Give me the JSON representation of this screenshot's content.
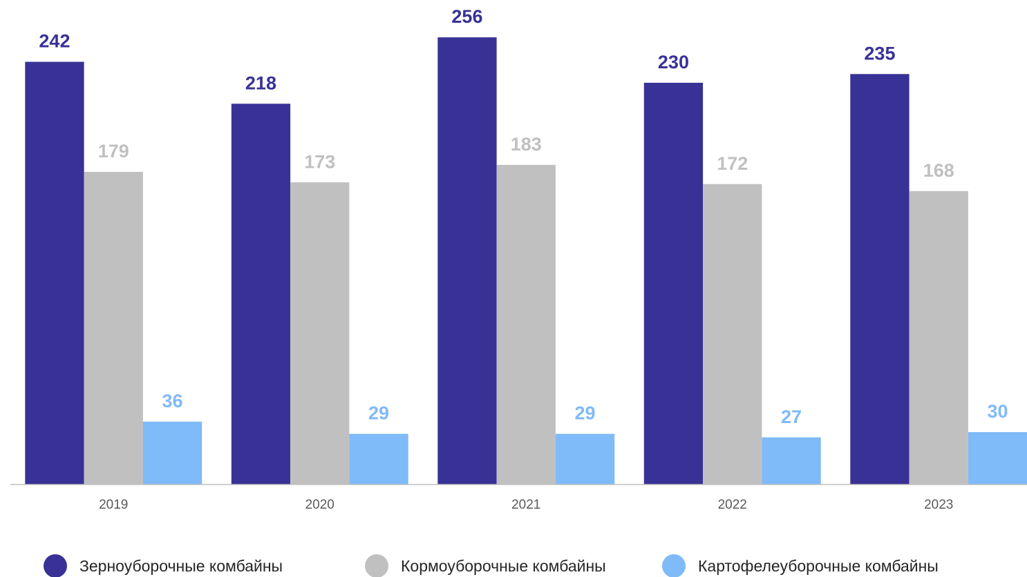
{
  "chart_data": {
    "type": "bar",
    "categories": [
      "2019",
      "2020",
      "2021",
      "2022",
      "2023"
    ],
    "series": [
      {
        "name": "Зерноуборочные комбайны",
        "color": "#383296",
        "values": [
          242,
          218,
          256,
          230,
          235
        ]
      },
      {
        "name": "Кормоуборочные комбайны",
        "color": "#c0c0c0",
        "values": [
          179,
          173,
          183,
          172,
          168
        ]
      },
      {
        "name": "Картофелеуборочные комбайны",
        "color": "#7fbaf9",
        "values": [
          36,
          29,
          29,
          27,
          30
        ]
      }
    ],
    "ylim": [
      0,
      260
    ],
    "grid": false
  }
}
